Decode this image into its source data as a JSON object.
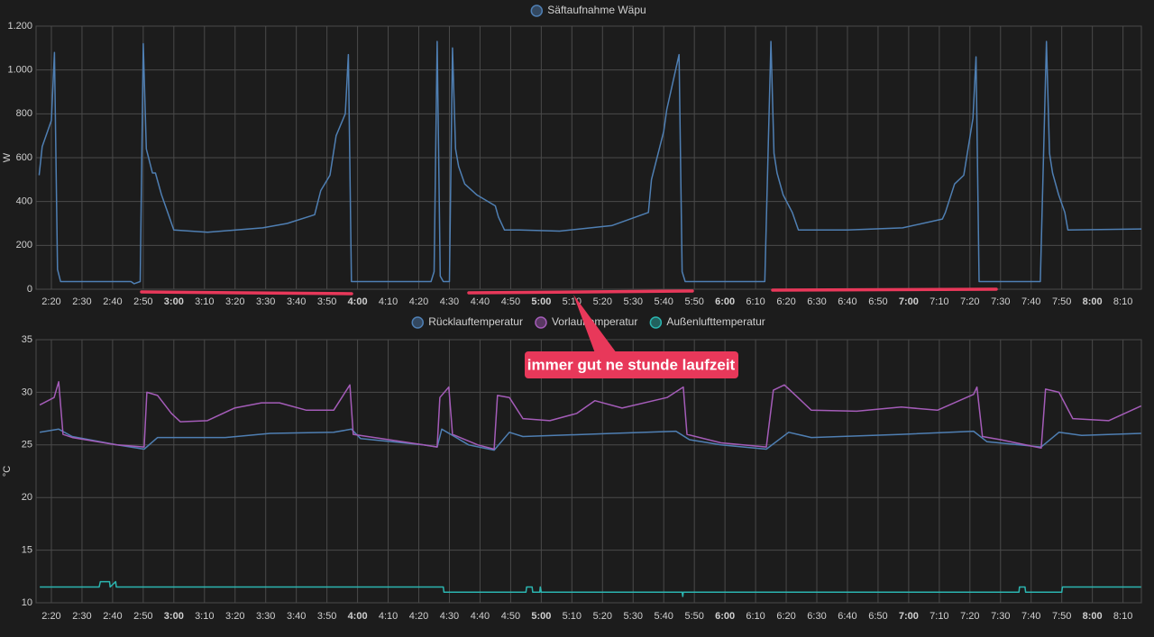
{
  "chart_data": [
    {
      "type": "line",
      "y_label": "W",
      "xlim": [
        135,
        496
      ],
      "ylim": [
        0,
        1200
      ],
      "yticks": [
        0,
        200,
        400,
        600,
        800,
        {
          "value": 1000,
          "label": "1.000"
        },
        {
          "value": 1200,
          "label": "1.200"
        }
      ],
      "xticks": [
        {
          "value": 140,
          "label": "2:20"
        },
        {
          "value": 150,
          "label": "2:30"
        },
        {
          "value": 160,
          "label": "2:40"
        },
        {
          "value": 170,
          "label": "2:50"
        },
        {
          "value": 180,
          "label": "3:00"
        },
        {
          "value": 190,
          "label": "3:10"
        },
        {
          "value": 200,
          "label": "3:20"
        },
        {
          "value": 210,
          "label": "3:30"
        },
        {
          "value": 220,
          "label": "3:40"
        },
        {
          "value": 230,
          "label": "3:50"
        },
        {
          "value": 240,
          "label": "4:00"
        },
        {
          "value": 250,
          "label": "4:10"
        },
        {
          "value": 260,
          "label": "4:20"
        },
        {
          "value": 270,
          "label": "4:30"
        },
        {
          "value": 280,
          "label": "4:40"
        },
        {
          "value": 290,
          "label": "4:50"
        },
        {
          "value": 300,
          "label": "5:00"
        },
        {
          "value": 310,
          "label": "5:10"
        },
        {
          "value": 320,
          "label": "5:20"
        },
        {
          "value": 330,
          "label": "5:30"
        },
        {
          "value": 340,
          "label": "5:40"
        },
        {
          "value": 350,
          "label": "5:50"
        },
        {
          "value": 360,
          "label": "6:00"
        },
        {
          "value": 370,
          "label": "6:10"
        },
        {
          "value": 380,
          "label": "6:20"
        },
        {
          "value": 390,
          "label": "6:30"
        },
        {
          "value": 400,
          "label": "6:40"
        },
        {
          "value": 410,
          "label": "6:50"
        },
        {
          "value": 420,
          "label": "7:00"
        },
        {
          "value": 430,
          "label": "7:10"
        },
        {
          "value": 440,
          "label": "7:20"
        },
        {
          "value": 450,
          "label": "7:30"
        },
        {
          "value": 460,
          "label": "7:40"
        },
        {
          "value": 470,
          "label": "7:50"
        },
        {
          "value": 480,
          "label": "8:00"
        },
        {
          "value": 490,
          "label": "8:10"
        }
      ],
      "grid": true,
      "series": [
        {
          "name": "Säftaufnahme Wäpu",
          "color": "#4f7fb3",
          "x": [
            136,
            137,
            140,
            141,
            142,
            143,
            166,
            167,
            169,
            170,
            171,
            173,
            174,
            176,
            178,
            180,
            191,
            209,
            217,
            226,
            228,
            231,
            233,
            236,
            237,
            238,
            264,
            265,
            266,
            267,
            268,
            270,
            271,
            272,
            273,
            275,
            279,
            285,
            286,
            288,
            293,
            306,
            323,
            335,
            336,
            340,
            341,
            345,
            346,
            347,
            373,
            375,
            376,
            377,
            379,
            382,
            384,
            400,
            418,
            431,
            432,
            435,
            438,
            441,
            442,
            443,
            463,
            465,
            466,
            467,
            469,
            471,
            472,
            496
          ],
          "values": [
            520,
            650,
            770,
            1080,
            90,
            35,
            35,
            25,
            35,
            1120,
            640,
            530,
            530,
            430,
            350,
            270,
            260,
            280,
            300,
            340,
            450,
            520,
            700,
            800,
            1070,
            35,
            35,
            80,
            1130,
            60,
            35,
            35,
            1100,
            640,
            560,
            480,
            430,
            380,
            330,
            270,
            270,
            265,
            290,
            350,
            500,
            720,
            820,
            1070,
            80,
            35,
            35,
            1130,
            620,
            530,
            430,
            350,
            270,
            270,
            280,
            320,
            350,
            480,
            520,
            780,
            1060,
            35,
            35,
            1130,
            620,
            530,
            430,
            350,
            270,
            275
          ]
        }
      ]
    },
    {
      "type": "line",
      "y_label": "°C",
      "xlim": [
        135,
        496
      ],
      "ylim": [
        10,
        35
      ],
      "yticks": [
        10,
        15,
        20,
        25,
        30,
        35
      ],
      "xticks": [
        {
          "value": 140,
          "label": "2:20"
        },
        {
          "value": 150,
          "label": "2:30"
        },
        {
          "value": 160,
          "label": "2:40"
        },
        {
          "value": 170,
          "label": "2:50"
        },
        {
          "value": 180,
          "label": "3:00"
        },
        {
          "value": 190,
          "label": "3:10"
        },
        {
          "value": 200,
          "label": "3:20"
        },
        {
          "value": 210,
          "label": "3:30"
        },
        {
          "value": 220,
          "label": "3:40"
        },
        {
          "value": 230,
          "label": "3:50"
        },
        {
          "value": 240,
          "label": "4:00"
        },
        {
          "value": 250,
          "label": "4:10"
        },
        {
          "value": 260,
          "label": "4:20"
        },
        {
          "value": 270,
          "label": "4:30"
        },
        {
          "value": 280,
          "label": "4:40"
        },
        {
          "value": 290,
          "label": "4:50"
        },
        {
          "value": 300,
          "label": "5:00"
        },
        {
          "value": 310,
          "label": "5:10"
        },
        {
          "value": 320,
          "label": "5:20"
        },
        {
          "value": 330,
          "label": "5:30"
        },
        {
          "value": 340,
          "label": "5:40"
        },
        {
          "value": 350,
          "label": "5:50"
        },
        {
          "value": 360,
          "label": "6:00"
        },
        {
          "value": 370,
          "label": "6:10"
        },
        {
          "value": 380,
          "label": "6:20"
        },
        {
          "value": 390,
          "label": "6:30"
        },
        {
          "value": 400,
          "label": "6:40"
        },
        {
          "value": 410,
          "label": "6:50"
        },
        {
          "value": 420,
          "label": "7:00"
        },
        {
          "value": 430,
          "label": "7:10"
        },
        {
          "value": 440,
          "label": "7:20"
        },
        {
          "value": 450,
          "label": "7:30"
        },
        {
          "value": 460,
          "label": "7:40"
        },
        {
          "value": 470,
          "label": "7:50"
        },
        {
          "value": 480,
          "label": "8:00"
        },
        {
          "value": 490,
          "label": "8:10"
        }
      ],
      "grid": true,
      "series": [
        {
          "name": "Rücklauftemperatur",
          "color": "#4f7fb3",
          "x": [
            136.2,
            142.4,
            146.8,
            161.5,
            170.3,
            174.7,
            196.8,
            211.5,
            232.2,
            238,
            241,
            261.6,
            266,
            267.5,
            276.3,
            284.6,
            289.6,
            294,
            323.4,
            344,
            348.4,
            358.7,
            373.5,
            380.8,
            388.2,
            417.6,
            441.2,
            445.6,
            463.3,
            469.1,
            476.5,
            495.9
          ],
          "values": [
            26.2,
            26.5,
            25.8,
            25,
            24.6,
            25.7,
            25.7,
            26.1,
            26.2,
            26.5,
            25.6,
            25,
            24.8,
            26.5,
            25,
            24.5,
            26.2,
            25.8,
            26.1,
            26.3,
            25.5,
            25,
            24.6,
            26.2,
            25.7,
            26,
            26.3,
            25.3,
            24.8,
            26.2,
            25.9,
            26.1
          ]
        },
        {
          "name": "Vorlauftemperatur",
          "color": "#a45cb8",
          "x": [
            136.2,
            140.9,
            142.4,
            143.8,
            146.8,
            161.5,
            170.3,
            171.2,
            174.7,
            179.2,
            182.1,
            190.9,
            199.8,
            208.6,
            214.5,
            223.3,
            232.2,
            237.5,
            238.6,
            261.6,
            266,
            266.9,
            269.8,
            271,
            279.3,
            284.6,
            285.7,
            289.6,
            294,
            302.8,
            311.6,
            317.5,
            326.4,
            341.1,
            346.4,
            347.6,
            358.7,
            373.5,
            375.8,
            379.4,
            383.8,
            388.2,
            403,
            417.6,
            429.4,
            441.2,
            442.3,
            444.1,
            450,
            463.3,
            464.7,
            469.1,
            473.6,
            485.3,
            495.9
          ],
          "values": [
            28.8,
            29.5,
            31,
            26,
            25.7,
            25,
            24.8,
            30,
            29.7,
            28,
            27.2,
            27.3,
            28.5,
            29,
            29,
            28.3,
            28.3,
            30.7,
            26,
            25,
            24.8,
            29.5,
            30.5,
            26,
            25,
            24.6,
            29.7,
            29.5,
            27.5,
            27.3,
            28,
            29.2,
            28.5,
            29.5,
            30.5,
            26,
            25.2,
            24.8,
            30.2,
            30.7,
            29.5,
            28.3,
            28.2,
            28.6,
            28.3,
            29.8,
            30.5,
            25.8,
            25.5,
            24.7,
            30.3,
            30,
            27.5,
            27.3,
            28.7
          ]
        },
        {
          "name": "Außenlufttemperatur",
          "color": "#2bb5b0",
          "x": [
            136.2,
            155.6,
            156,
            159,
            159.2,
            161,
            161.2,
            268,
            268.2,
            295,
            295.2,
            297,
            297.2,
            299.5,
            299.7,
            300,
            346,
            346.2,
            346.4,
            456,
            456.2,
            458,
            458.2,
            470,
            470.2,
            495.9
          ],
          "values": [
            11.5,
            11.5,
            12,
            12,
            11.5,
            12,
            11.5,
            11.5,
            11,
            11,
            11.5,
            11.5,
            11,
            11,
            11.5,
            11,
            11,
            10.6,
            11,
            11,
            11.5,
            11.5,
            11,
            11,
            11.5,
            11.5
          ]
        }
      ]
    }
  ],
  "annotation": "immer gut ne stunde laufzeit"
}
